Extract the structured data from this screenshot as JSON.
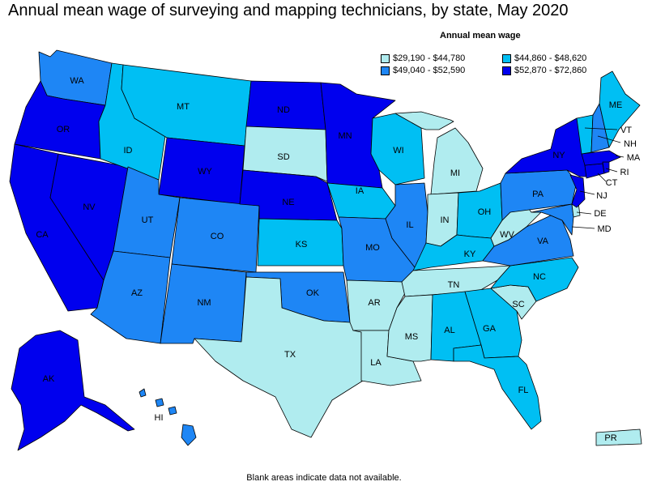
{
  "title": "Annual mean wage of surveying and mapping technicians, by state, May 2020",
  "legend": {
    "title": "Annual mean wage",
    "items": [
      {
        "label": "$29,190 - $44,780",
        "color": "#b0ecef"
      },
      {
        "label": "$44,860 - $48,620",
        "color": "#00bff3"
      },
      {
        "label": "$49,040 - $52,590",
        "color": "#1e86f5"
      },
      {
        "label": "$52,870 - $72,860",
        "color": "#0000ee"
      }
    ]
  },
  "footnote": "Blank areas indicate data not available.",
  "states": {
    "WA": {
      "label": "WA",
      "bin": 2
    },
    "OR": {
      "label": "OR",
      "bin": 3
    },
    "CA": {
      "label": "CA",
      "bin": 3
    },
    "NV": {
      "label": "NV",
      "bin": 3
    },
    "ID": {
      "label": "ID",
      "bin": 1
    },
    "MT": {
      "label": "MT",
      "bin": 1
    },
    "WY": {
      "label": "WY",
      "bin": 3
    },
    "UT": {
      "label": "UT",
      "bin": 2
    },
    "AZ": {
      "label": "AZ",
      "bin": 2
    },
    "CO": {
      "label": "CO",
      "bin": 2
    },
    "NM": {
      "label": "NM",
      "bin": 2
    },
    "ND": {
      "label": "ND",
      "bin": 3
    },
    "SD": {
      "label": "SD",
      "bin": 0
    },
    "NE": {
      "label": "NE",
      "bin": 3
    },
    "KS": {
      "label": "KS",
      "bin": 1
    },
    "OK": {
      "label": "OK",
      "bin": 2
    },
    "TX": {
      "label": "TX",
      "bin": 0
    },
    "MN": {
      "label": "MN",
      "bin": 3
    },
    "IA": {
      "label": "IA",
      "bin": 1
    },
    "MO": {
      "label": "MO",
      "bin": 2
    },
    "AR": {
      "label": "AR",
      "bin": 0
    },
    "LA": {
      "label": "LA",
      "bin": 0
    },
    "WI": {
      "label": "WI",
      "bin": 1
    },
    "IL": {
      "label": "IL",
      "bin": 2
    },
    "MI": {
      "label": "MI",
      "bin": 0
    },
    "IN": {
      "label": "IN",
      "bin": 0
    },
    "OH": {
      "label": "OH",
      "bin": 1
    },
    "KY": {
      "label": "KY",
      "bin": 1
    },
    "TN": {
      "label": "TN",
      "bin": 0
    },
    "MS": {
      "label": "MS",
      "bin": 0
    },
    "AL": {
      "label": "AL",
      "bin": 1
    },
    "GA": {
      "label": "GA",
      "bin": 1
    },
    "FL": {
      "label": "FL",
      "bin": 1
    },
    "SC": {
      "label": "SC",
      "bin": 0
    },
    "NC": {
      "label": "NC",
      "bin": 1
    },
    "VA": {
      "label": "VA",
      "bin": 2
    },
    "WV": {
      "label": "WV",
      "bin": 0
    },
    "PA": {
      "label": "PA",
      "bin": 2
    },
    "NY": {
      "label": "NY",
      "bin": 3
    },
    "NJ": {
      "label": "NJ",
      "bin": 3
    },
    "DE": {
      "label": "DE",
      "bin": 0
    },
    "MD": {
      "label": "MD",
      "bin": 2
    },
    "CT": {
      "label": "CT",
      "bin": 3
    },
    "RI": {
      "label": "RI",
      "bin": 3
    },
    "MA": {
      "label": "MA",
      "bin": 3
    },
    "VT": {
      "label": "VT",
      "bin": 1
    },
    "NH": {
      "label": "NH",
      "bin": 2
    },
    "ME": {
      "label": "ME",
      "bin": 1
    },
    "AK": {
      "label": "AK",
      "bin": 3
    },
    "HI": {
      "label": "HI",
      "bin": 2
    },
    "PR": {
      "label": "PR",
      "bin": 0
    }
  }
}
